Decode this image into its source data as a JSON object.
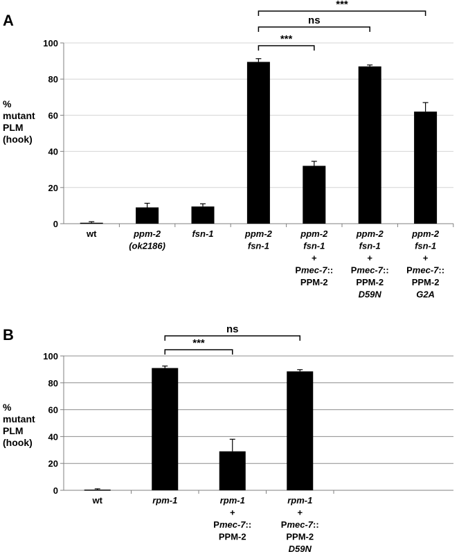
{
  "chart_data": [
    {
      "type": "bar",
      "panel_label": "A",
      "ylabel": [
        "%",
        "mutant",
        "PLM",
        "(hook)"
      ],
      "ylim": [
        0,
        100
      ],
      "yticks": [
        0,
        20,
        40,
        60,
        80,
        100
      ],
      "grid": true,
      "categories": [
        [
          {
            "t": "wt"
          }
        ],
        [
          {
            "t": "ppm-2",
            "i": true
          },
          {
            "t": "(ok2186)",
            "i": true
          }
        ],
        [
          {
            "t": "fsn-1",
            "i": true
          }
        ],
        [
          {
            "t": "ppm-2",
            "i": true
          },
          {
            "t": "fsn-1",
            "i": true
          }
        ],
        [
          {
            "t": "ppm-2",
            "i": true
          },
          {
            "t": "fsn-1",
            "i": true
          },
          {
            "t": "+"
          },
          {
            "parts": [
              {
                "t": "P"
              },
              {
                "t": "mec-7",
                "i": true
              },
              {
                "t": "::"
              }
            ]
          },
          {
            "t": "PPM-2"
          }
        ],
        [
          {
            "t": "ppm-2",
            "i": true
          },
          {
            "t": "fsn-1",
            "i": true
          },
          {
            "t": "+"
          },
          {
            "parts": [
              {
                "t": "P"
              },
              {
                "t": "mec-7",
                "i": true
              },
              {
                "t": "::"
              }
            ]
          },
          {
            "t": "PPM-2"
          },
          {
            "t": "D59N",
            "i": true
          }
        ],
        [
          {
            "t": "ppm-2",
            "i": true
          },
          {
            "t": "fsn-1",
            "i": true
          },
          {
            "t": "+"
          },
          {
            "parts": [
              {
                "t": "P"
              },
              {
                "t": "mec-7",
                "i": true
              },
              {
                "t": "::"
              }
            ]
          },
          {
            "t": "PPM-2"
          },
          {
            "t": "G2A",
            "i": true
          }
        ]
      ],
      "values": [
        0.5,
        9,
        9.5,
        89.5,
        32,
        87,
        62
      ],
      "errors": [
        0.6,
        2.3,
        1.5,
        1.8,
        2.5,
        0.8,
        5
      ],
      "comparisons": [
        {
          "from": 3,
          "to": 4,
          "label": "***"
        },
        {
          "from": 3,
          "to": 5,
          "label": "ns"
        },
        {
          "from": 3,
          "to": 6,
          "label": "***"
        }
      ],
      "colors": {
        "bar": "#000000",
        "grid": "#d4d4d4",
        "axis": "#7f7f7f"
      }
    },
    {
      "type": "bar",
      "panel_label": "B",
      "ylabel": [
        "%",
        "mutant",
        "PLM",
        "(hook)"
      ],
      "ylim": [
        0,
        100
      ],
      "yticks": [
        0,
        20,
        40,
        60,
        80,
        100
      ],
      "grid": true,
      "categories": [
        [
          {
            "t": "wt"
          }
        ],
        [
          {
            "t": "rpm-1",
            "i": true
          }
        ],
        [
          {
            "t": "rpm-1",
            "i": true
          },
          {
            "t": "+"
          },
          {
            "parts": [
              {
                "t": "P"
              },
              {
                "t": "mec-7",
                "i": true
              },
              {
                "t": "::"
              }
            ]
          },
          {
            "t": "PPM-2"
          }
        ],
        [
          {
            "t": "rpm-1",
            "i": true
          },
          {
            "t": "+"
          },
          {
            "parts": [
              {
                "t": "P"
              },
              {
                "t": "mec-7",
                "i": true
              },
              {
                "t": "::"
              }
            ]
          },
          {
            "t": "PPM-2"
          },
          {
            "t": "D59N",
            "i": true
          }
        ]
      ],
      "values": [
        0.5,
        91,
        29,
        88.5
      ],
      "errors": [
        0.6,
        1.5,
        9,
        1.3
      ],
      "comparisons": [
        {
          "from": 1,
          "to": 2,
          "label": "***"
        },
        {
          "from": 1,
          "to": 3,
          "label": "ns"
        }
      ],
      "colors": {
        "bar": "#000000",
        "grid": "#8c8c8c",
        "axis": "#7f7f7f"
      }
    }
  ]
}
